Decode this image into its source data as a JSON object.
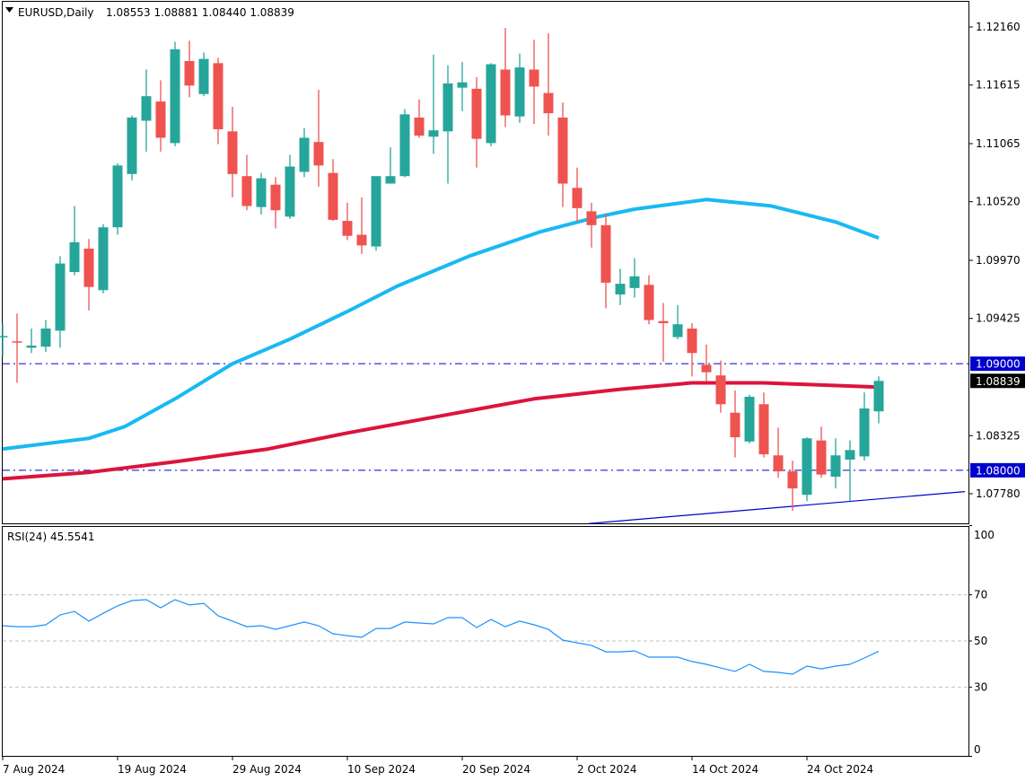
{
  "header": {
    "symbol_timeframe": "EURUSD,Daily",
    "ohlc": "1.08553 1.08881 1.08440 1.08839",
    "menu_icon": "triangle-down-icon"
  },
  "colors": {
    "bull": "#26a69a",
    "bear": "#ef5350",
    "ma_fast": "#19b9f2",
    "ma_slow": "#dc143c",
    "level_line": "#0000cd",
    "rsi_line": "#1e90ff",
    "grid": "#c0c0c0"
  },
  "chart_data": [
    {
      "type": "candlestick",
      "title": "EURUSD,Daily",
      "ylim": [
        1.0747,
        1.1241
      ],
      "price_ticks": [
        "1.12160",
        "1.11615",
        "1.11065",
        "1.10520",
        "1.09970",
        "1.09425",
        "1.08325",
        "1.07780"
      ],
      "price_tick_values": [
        1.1216,
        1.11615,
        1.11065,
        1.1052,
        1.0997,
        1.09425,
        1.08325,
        1.0778
      ],
      "date_labels": [
        {
          "candle": 1,
          "label": "7 Aug 2024"
        },
        {
          "candle": 9,
          "label": "19 Aug 2024"
        },
        {
          "candle": 17,
          "label": "29 Aug 2024"
        },
        {
          "candle": 25,
          "label": "10 Sep 2024"
        },
        {
          "candle": 33,
          "label": "20 Sep 2024"
        },
        {
          "candle": 41,
          "label": "2 Oct 2024"
        },
        {
          "candle": 49,
          "label": "14 Oct 2024"
        },
        {
          "candle": 57,
          "label": "24 Oct 2024"
        }
      ],
      "ohlc": [
        [
          1.0925,
          1.0938,
          1.0907,
          1.0926
        ],
        [
          1.0921,
          1.0947,
          1.0882,
          1.092
        ],
        [
          1.0915,
          1.0933,
          1.091,
          1.0917
        ],
        [
          1.0916,
          1.0941,
          1.0911,
          1.0933
        ],
        [
          1.0931,
          1.1001,
          1.0915,
          1.0994
        ],
        [
          1.0986,
          1.1048,
          1.0983,
          1.1014
        ],
        [
          1.1008,
          1.1017,
          1.095,
          1.0972
        ],
        [
          1.0969,
          1.1031,
          1.0966,
          1.1028
        ],
        [
          1.1028,
          1.1088,
          1.1021,
          1.1086
        ],
        [
          1.1078,
          1.1133,
          1.1072,
          1.1131
        ],
        [
          1.1128,
          1.1176,
          1.1099,
          1.1151
        ],
        [
          1.1146,
          1.1166,
          1.1099,
          1.1112
        ],
        [
          1.1107,
          1.1202,
          1.1104,
          1.1195
        ],
        [
          1.1184,
          1.1203,
          1.115,
          1.1161
        ],
        [
          1.1153,
          1.1192,
          1.1151,
          1.1186
        ],
        [
          1.1182,
          1.1187,
          1.1106,
          1.112
        ],
        [
          1.1118,
          1.1141,
          1.1056,
          1.1078
        ],
        [
          1.1076,
          1.1096,
          1.1044,
          1.1048
        ],
        [
          1.1047,
          1.1079,
          1.104,
          1.1074
        ],
        [
          1.1068,
          1.1075,
          1.1027,
          1.1044
        ],
        [
          1.1038,
          1.1096,
          1.1036,
          1.1085
        ],
        [
          1.108,
          1.1121,
          1.1075,
          1.1112
        ],
        [
          1.1108,
          1.1157,
          1.1066,
          1.1086
        ],
        [
          1.1079,
          1.1092,
          1.1034,
          1.1035
        ],
        [
          1.1034,
          1.1051,
          1.1016,
          1.102
        ],
        [
          1.1021,
          1.1056,
          1.1003,
          1.1011
        ],
        [
          1.101,
          1.1076,
          1.1006,
          1.1076
        ],
        [
          1.1069,
          1.1103,
          1.1069,
          1.1076
        ],
        [
          1.1076,
          1.1139,
          1.1075,
          1.1134
        ],
        [
          1.1131,
          1.1148,
          1.1112,
          1.1114
        ],
        [
          1.1113,
          1.119,
          1.1097,
          1.1119
        ],
        [
          1.1118,
          1.118,
          1.1069,
          1.1163
        ],
        [
          1.1159,
          1.1183,
          1.1137,
          1.1164
        ],
        [
          1.1158,
          1.1169,
          1.1084,
          1.1111
        ],
        [
          1.1107,
          1.1182,
          1.1104,
          1.1181
        ],
        [
          1.1176,
          1.1215,
          1.1122,
          1.1133
        ],
        [
          1.1132,
          1.1191,
          1.1126,
          1.1178
        ],
        [
          1.1176,
          1.1204,
          1.1125,
          1.116
        ],
        [
          1.1154,
          1.121,
          1.1114,
          1.1135
        ],
        [
          1.1131,
          1.1145,
          1.1047,
          1.1069
        ],
        [
          1.1065,
          1.1084,
          1.1033,
          1.1046
        ],
        [
          1.1043,
          1.1051,
          1.1009,
          1.103
        ],
        [
          1.103,
          1.1041,
          1.0952,
          1.0976
        ],
        [
          1.0965,
          1.0989,
          1.0955,
          1.0975
        ],
        [
          1.0971,
          1.0999,
          1.0962,
          1.0982
        ],
        [
          1.0974,
          1.0983,
          1.0937,
          1.0941
        ],
        [
          1.094,
          1.0957,
          1.0902,
          1.0938
        ],
        [
          1.0925,
          1.0955,
          1.0923,
          1.0937
        ],
        [
          1.0933,
          1.0938,
          1.0888,
          1.091
        ],
        [
          1.0899,
          1.0918,
          1.0883,
          1.0892
        ],
        [
          1.0889,
          1.0903,
          1.0854,
          1.0862
        ],
        [
          1.0854,
          1.0875,
          1.0812,
          1.0831
        ],
        [
          1.0827,
          1.0871,
          1.0825,
          1.0869
        ],
        [
          1.0862,
          1.0873,
          1.0812,
          1.0815
        ],
        [
          1.0814,
          1.084,
          1.0793,
          1.0799
        ],
        [
          1.0799,
          1.0809,
          1.0762,
          1.0783
        ],
        [
          1.0777,
          1.0831,
          1.0771,
          1.083
        ],
        [
          1.0828,
          1.0841,
          1.0793,
          1.0796
        ],
        [
          1.0794,
          1.083,
          1.0783,
          1.0814
        ],
        [
          1.081,
          1.0828,
          1.0771,
          1.0819
        ],
        [
          1.0813,
          1.0873,
          1.0809,
          1.0858
        ],
        [
          1.08553,
          1.08881,
          1.0844,
          1.08839
        ]
      ],
      "ma_fast": [
        [
          1,
          1.082
        ],
        [
          7,
          1.083
        ],
        [
          9.5,
          1.0841
        ],
        [
          13,
          1.0867
        ],
        [
          17,
          1.09
        ],
        [
          21,
          1.0923
        ],
        [
          25,
          1.0949
        ],
        [
          28.5,
          1.0973
        ],
        [
          33.5,
          1.1001
        ],
        [
          38.5,
          1.1024
        ],
        [
          42.5,
          1.1038
        ],
        [
          45,
          1.1045
        ],
        [
          50,
          1.1054
        ],
        [
          54.5,
          1.1048
        ],
        [
          59,
          1.1033
        ],
        [
          62,
          1.1018
        ]
      ],
      "ma_slow": [
        [
          1,
          1.0792
        ],
        [
          7,
          1.0798
        ],
        [
          13,
          1.0808
        ],
        [
          19.5,
          1.082
        ],
        [
          25,
          1.0835
        ],
        [
          31.5,
          1.0851
        ],
        [
          38,
          1.0867
        ],
        [
          44,
          1.0876
        ],
        [
          49,
          1.0882
        ],
        [
          54,
          1.0882
        ],
        [
          62,
          1.0878
        ]
      ],
      "levels": [
        {
          "value": 1.09,
          "label": "1.09000"
        },
        {
          "value": 1.08,
          "label": "1.08000"
        }
      ],
      "current_price": {
        "value": 1.08839,
        "label": "1.08839"
      },
      "trendline": [
        [
          41.8,
          1.075
        ],
        [
          68,
          1.078
        ]
      ]
    },
    {
      "type": "line",
      "title": "RSI(24) 45.5541",
      "name": "RSI(24)",
      "last_value": "45.5541",
      "ylim": [
        0,
        100
      ],
      "y_ticks": [
        "100",
        "70",
        "50",
        "30",
        "0"
      ],
      "levels": [
        70,
        50,
        30
      ],
      "values": [
        56.6,
        56.2,
        56.2,
        57.0,
        61.3,
        62.8,
        58.6,
        62.0,
        65.2,
        67.5,
        67.9,
        64.4,
        67.9,
        65.6,
        66.3,
        60.9,
        58.6,
        56.2,
        56.6,
        55.0,
        56.6,
        58.2,
        56.6,
        53.1,
        52.3,
        51.6,
        55.4,
        55.4,
        58.2,
        57.8,
        57.4,
        60.1,
        60.1,
        55.8,
        59.3,
        56.2,
        58.6,
        57.0,
        55.0,
        50.4,
        49.2,
        48.1,
        45.3,
        45.3,
        45.7,
        43.0,
        43.0,
        43.0,
        41.1,
        39.9,
        38.3,
        36.8,
        39.9,
        36.8,
        36.4,
        35.6,
        39.1,
        37.9,
        39.1,
        39.9,
        42.6,
        45.55
      ]
    }
  ]
}
